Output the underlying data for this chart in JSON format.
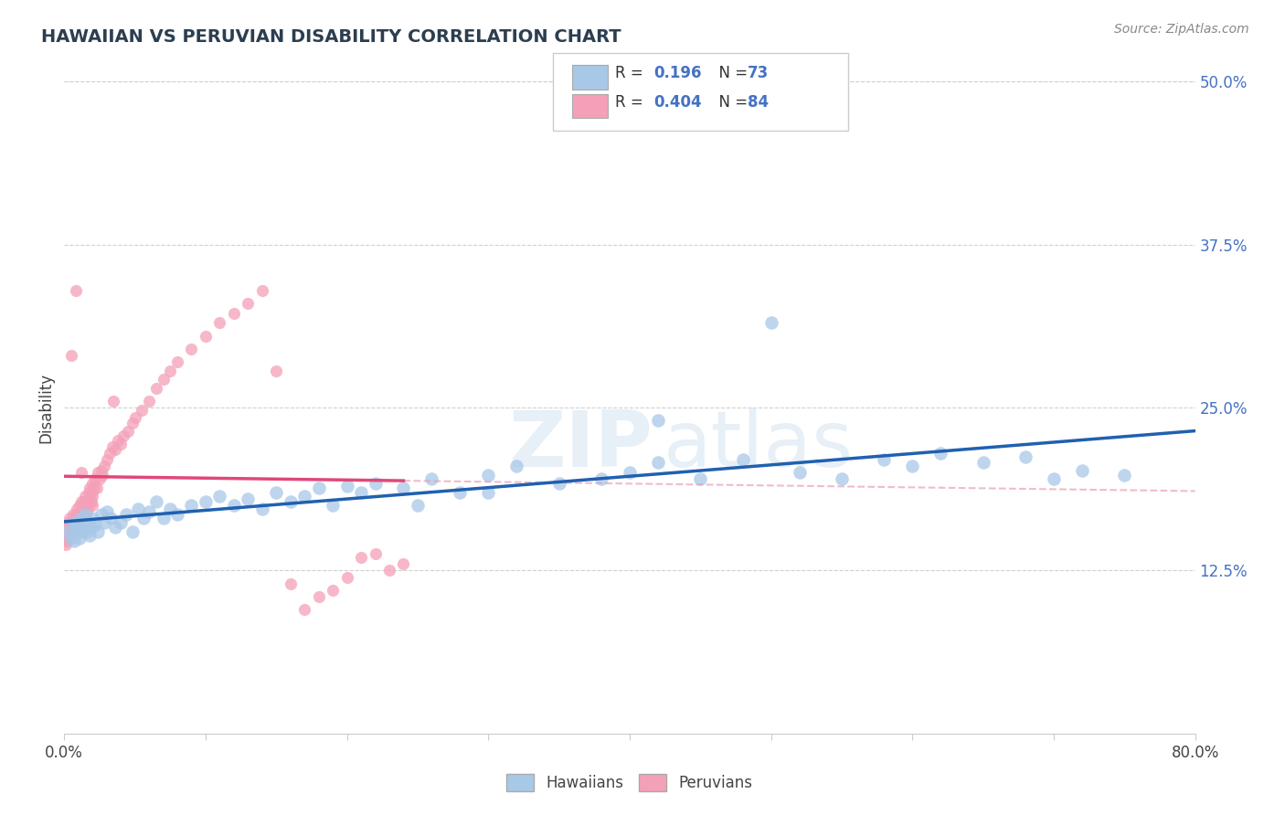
{
  "title": "HAWAIIAN VS PERUVIAN DISABILITY CORRELATION CHART",
  "source_text": "Source: ZipAtlas.com",
  "ylabel": "Disability",
  "xlim": [
    0.0,
    0.8
  ],
  "ylim": [
    0.0,
    0.5
  ],
  "ytick_right_labels": [
    "12.5%",
    "25.0%",
    "37.5%",
    "50.0%"
  ],
  "ytick_right_values": [
    0.125,
    0.25,
    0.375,
    0.5
  ],
  "hawaiian_color": "#a8c8e8",
  "peruvian_color": "#f4a0b8",
  "hawaiian_line_color": "#2060b0",
  "peruvian_line_color": "#e04878",
  "peruvian_dashed_color": "#e8a0b8",
  "watermark_color": "#d0e0f0",
  "background_color": "#ffffff",
  "grid_color": "#d0d0d0",
  "hawaiians_x": [
    0.003,
    0.005,
    0.006,
    0.007,
    0.008,
    0.009,
    0.01,
    0.011,
    0.012,
    0.013,
    0.014,
    0.015,
    0.016,
    0.017,
    0.018,
    0.019,
    0.02,
    0.022,
    0.024,
    0.026,
    0.028,
    0.03,
    0.033,
    0.036,
    0.04,
    0.044,
    0.048,
    0.052,
    0.056,
    0.06,
    0.065,
    0.07,
    0.075,
    0.08,
    0.09,
    0.1,
    0.11,
    0.12,
    0.13,
    0.14,
    0.15,
    0.16,
    0.17,
    0.18,
    0.19,
    0.2,
    0.21,
    0.22,
    0.24,
    0.26,
    0.28,
    0.3,
    0.32,
    0.35,
    0.38,
    0.4,
    0.42,
    0.45,
    0.48,
    0.5,
    0.52,
    0.55,
    0.58,
    0.6,
    0.62,
    0.65,
    0.68,
    0.7,
    0.72,
    0.75,
    0.42,
    0.25,
    0.3
  ],
  "hawaiians_y": [
    0.155,
    0.15,
    0.162,
    0.148,
    0.158,
    0.155,
    0.162,
    0.15,
    0.165,
    0.155,
    0.16,
    0.168,
    0.155,
    0.162,
    0.152,
    0.158,
    0.165,
    0.16,
    0.155,
    0.168,
    0.162,
    0.17,
    0.165,
    0.158,
    0.162,
    0.168,
    0.155,
    0.172,
    0.165,
    0.17,
    0.178,
    0.165,
    0.172,
    0.168,
    0.175,
    0.178,
    0.182,
    0.175,
    0.18,
    0.172,
    0.185,
    0.178,
    0.182,
    0.188,
    0.175,
    0.19,
    0.185,
    0.192,
    0.188,
    0.195,
    0.185,
    0.198,
    0.205,
    0.192,
    0.195,
    0.2,
    0.208,
    0.195,
    0.21,
    0.315,
    0.2,
    0.195,
    0.21,
    0.205,
    0.215,
    0.208,
    0.212,
    0.195,
    0.202,
    0.198,
    0.24,
    0.175,
    0.185
  ],
  "peruvians_x": [
    0.001,
    0.002,
    0.002,
    0.003,
    0.003,
    0.004,
    0.004,
    0.005,
    0.005,
    0.006,
    0.006,
    0.007,
    0.007,
    0.008,
    0.008,
    0.009,
    0.009,
    0.01,
    0.01,
    0.011,
    0.011,
    0.012,
    0.012,
    0.013,
    0.013,
    0.014,
    0.014,
    0.015,
    0.015,
    0.016,
    0.016,
    0.017,
    0.017,
    0.018,
    0.018,
    0.019,
    0.019,
    0.02,
    0.02,
    0.021,
    0.022,
    0.023,
    0.024,
    0.025,
    0.026,
    0.027,
    0.028,
    0.03,
    0.032,
    0.034,
    0.036,
    0.038,
    0.04,
    0.042,
    0.045,
    0.048,
    0.05,
    0.055,
    0.06,
    0.065,
    0.07,
    0.075,
    0.08,
    0.09,
    0.1,
    0.11,
    0.12,
    0.13,
    0.14,
    0.15,
    0.16,
    0.17,
    0.18,
    0.19,
    0.2,
    0.21,
    0.22,
    0.23,
    0.24,
    0.035,
    0.005,
    0.008,
    0.012,
    0.02
  ],
  "peruvians_y": [
    0.145,
    0.158,
    0.148,
    0.155,
    0.162,
    0.15,
    0.165,
    0.155,
    0.16,
    0.158,
    0.168,
    0.155,
    0.162,
    0.168,
    0.158,
    0.165,
    0.172,
    0.16,
    0.168,
    0.175,
    0.162,
    0.168,
    0.178,
    0.165,
    0.172,
    0.168,
    0.178,
    0.175,
    0.182,
    0.17,
    0.178,
    0.185,
    0.175,
    0.182,
    0.188,
    0.178,
    0.185,
    0.192,
    0.182,
    0.188,
    0.195,
    0.188,
    0.2,
    0.195,
    0.202,
    0.198,
    0.205,
    0.21,
    0.215,
    0.22,
    0.218,
    0.225,
    0.222,
    0.228,
    0.232,
    0.238,
    0.242,
    0.248,
    0.255,
    0.265,
    0.272,
    0.278,
    0.285,
    0.295,
    0.305,
    0.315,
    0.322,
    0.33,
    0.34,
    0.278,
    0.115,
    0.095,
    0.105,
    0.11,
    0.12,
    0.135,
    0.138,
    0.125,
    0.13,
    0.255,
    0.29,
    0.34,
    0.2,
    0.175
  ]
}
